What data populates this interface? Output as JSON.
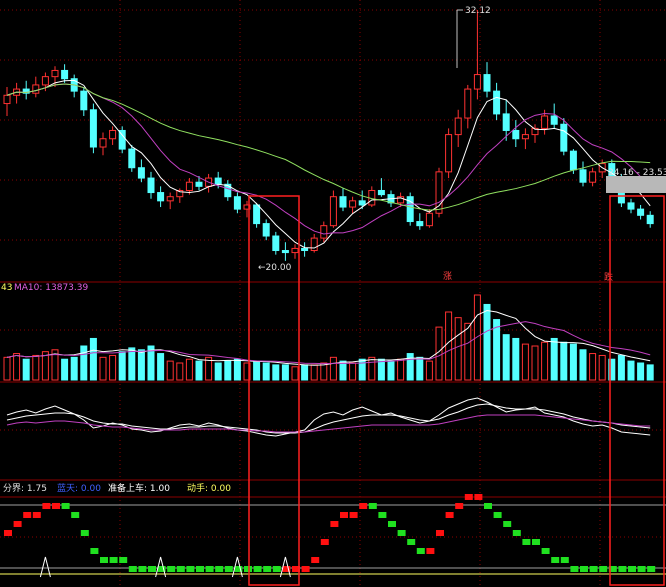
{
  "price_panel": {
    "high_label": "32.12",
    "low_label": "←20.00",
    "range_label": "24.16 - 23.53"
  },
  "volume_panel": {
    "ma5_value_partial": "43",
    "ma10_label": "MA10: 13873.39",
    "marker_left": "涨",
    "marker_right": "跌"
  },
  "indicator_panel": {
    "label_fenjie": "分界: 1.75",
    "label_lanse": "蓝天: 0.00",
    "label_zhunbei": "准备上车: 1.00",
    "label_dongshou": "动手: 0.00"
  },
  "colors": {
    "up": "#ff3232",
    "down": "#54ffff",
    "ma_white": "#ffffff",
    "ma_magenta": "#c040c0",
    "ma_green": "#90e060",
    "grid": "#8b0000",
    "highlight_box": "#ff2020",
    "ind_red": "#ff1010",
    "ind_green": "#20e020"
  },
  "chart_data": {
    "type": "candlestick",
    "candles": [
      {
        "o": 27.6,
        "h": 28.4,
        "l": 27.0,
        "c": 28.0
      },
      {
        "o": 28.0,
        "h": 28.6,
        "l": 27.6,
        "c": 28.3
      },
      {
        "o": 28.3,
        "h": 28.7,
        "l": 27.8,
        "c": 28.1
      },
      {
        "o": 28.1,
        "h": 28.9,
        "l": 27.9,
        "c": 28.5
      },
      {
        "o": 28.5,
        "h": 29.1,
        "l": 28.2,
        "c": 28.9
      },
      {
        "o": 28.9,
        "h": 29.4,
        "l": 28.4,
        "c": 29.2
      },
      {
        "o": 29.2,
        "h": 29.5,
        "l": 28.6,
        "c": 28.8
      },
      {
        "o": 28.8,
        "h": 29.0,
        "l": 27.9,
        "c": 28.2
      },
      {
        "o": 28.2,
        "h": 28.4,
        "l": 27.0,
        "c": 27.3
      },
      {
        "o": 27.3,
        "h": 27.6,
        "l": 25.2,
        "c": 25.5
      },
      {
        "o": 25.5,
        "h": 26.2,
        "l": 25.1,
        "c": 25.9
      },
      {
        "o": 25.9,
        "h": 26.5,
        "l": 25.6,
        "c": 26.3
      },
      {
        "o": 26.3,
        "h": 26.5,
        "l": 25.2,
        "c": 25.4
      },
      {
        "o": 25.4,
        "h": 25.6,
        "l": 24.3,
        "c": 24.5
      },
      {
        "o": 24.5,
        "h": 24.9,
        "l": 23.8,
        "c": 24.0
      },
      {
        "o": 24.0,
        "h": 24.3,
        "l": 23.0,
        "c": 23.3
      },
      {
        "o": 23.3,
        "h": 23.6,
        "l": 22.6,
        "c": 22.9
      },
      {
        "o": 22.9,
        "h": 23.3,
        "l": 22.5,
        "c": 23.1
      },
      {
        "o": 23.1,
        "h": 23.5,
        "l": 22.8,
        "c": 23.4
      },
      {
        "o": 23.4,
        "h": 24.0,
        "l": 23.2,
        "c": 23.8
      },
      {
        "o": 23.8,
        "h": 24.1,
        "l": 23.4,
        "c": 23.6
      },
      {
        "o": 23.6,
        "h": 24.2,
        "l": 23.3,
        "c": 24.0
      },
      {
        "o": 24.0,
        "h": 24.3,
        "l": 23.5,
        "c": 23.7
      },
      {
        "o": 23.7,
        "h": 23.9,
        "l": 22.9,
        "c": 23.1
      },
      {
        "o": 23.1,
        "h": 23.3,
        "l": 22.3,
        "c": 22.5
      },
      {
        "o": 22.5,
        "h": 22.9,
        "l": 22.1,
        "c": 22.7
      },
      {
        "o": 22.7,
        "h": 22.8,
        "l": 21.6,
        "c": 21.8
      },
      {
        "o": 21.8,
        "h": 22.0,
        "l": 21.0,
        "c": 21.2
      },
      {
        "o": 21.2,
        "h": 21.4,
        "l": 20.3,
        "c": 20.5
      },
      {
        "o": 20.5,
        "h": 20.9,
        "l": 20.0,
        "c": 20.4
      },
      {
        "o": 20.4,
        "h": 20.8,
        "l": 20.1,
        "c": 20.6
      },
      {
        "o": 20.6,
        "h": 20.9,
        "l": 20.2,
        "c": 20.5
      },
      {
        "o": 20.5,
        "h": 21.3,
        "l": 20.4,
        "c": 21.1
      },
      {
        "o": 21.1,
        "h": 21.9,
        "l": 20.9,
        "c": 21.7
      },
      {
        "o": 21.7,
        "h": 23.4,
        "l": 21.6,
        "c": 23.1
      },
      {
        "o": 23.1,
        "h": 23.5,
        "l": 22.4,
        "c": 22.6
      },
      {
        "o": 22.6,
        "h": 23.1,
        "l": 22.3,
        "c": 22.9
      },
      {
        "o": 22.9,
        "h": 23.4,
        "l": 22.5,
        "c": 22.7
      },
      {
        "o": 22.7,
        "h": 23.6,
        "l": 22.6,
        "c": 23.4
      },
      {
        "o": 23.4,
        "h": 24.0,
        "l": 23.1,
        "c": 23.2
      },
      {
        "o": 23.2,
        "h": 23.4,
        "l": 22.6,
        "c": 22.8
      },
      {
        "o": 22.8,
        "h": 23.3,
        "l": 22.6,
        "c": 23.1
      },
      {
        "o": 23.1,
        "h": 23.3,
        "l": 21.7,
        "c": 21.9
      },
      {
        "o": 21.9,
        "h": 22.3,
        "l": 21.5,
        "c": 21.7
      },
      {
        "o": 21.7,
        "h": 22.5,
        "l": 21.6,
        "c": 22.3
      },
      {
        "o": 22.3,
        "h": 24.5,
        "l": 22.1,
        "c": 24.3
      },
      {
        "o": 24.3,
        "h": 26.4,
        "l": 24.0,
        "c": 26.1
      },
      {
        "o": 26.1,
        "h": 27.3,
        "l": 25.5,
        "c": 26.9
      },
      {
        "o": 26.9,
        "h": 28.5,
        "l": 26.4,
        "c": 28.3
      },
      {
        "o": 28.3,
        "h": 32.12,
        "l": 27.8,
        "c": 29.0
      },
      {
        "o": 29.0,
        "h": 29.6,
        "l": 27.9,
        "c": 28.2
      },
      {
        "o": 28.2,
        "h": 28.6,
        "l": 26.8,
        "c": 27.1
      },
      {
        "o": 27.1,
        "h": 27.8,
        "l": 25.8,
        "c": 26.3
      },
      {
        "o": 26.3,
        "h": 26.8,
        "l": 25.5,
        "c": 25.9
      },
      {
        "o": 25.9,
        "h": 26.4,
        "l": 25.4,
        "c": 26.1
      },
      {
        "o": 26.1,
        "h": 26.6,
        "l": 25.7,
        "c": 26.4
      },
      {
        "o": 26.4,
        "h": 27.3,
        "l": 26.1,
        "c": 27.0
      },
      {
        "o": 27.0,
        "h": 27.6,
        "l": 26.4,
        "c": 26.6
      },
      {
        "o": 26.6,
        "h": 26.9,
        "l": 25.1,
        "c": 25.3
      },
      {
        "o": 25.3,
        "h": 25.4,
        "l": 24.2,
        "c": 24.4
      },
      {
        "o": 24.4,
        "h": 24.8,
        "l": 23.6,
        "c": 23.8
      },
      {
        "o": 23.8,
        "h": 24.5,
        "l": 23.6,
        "c": 24.3
      },
      {
        "o": 24.3,
        "h": 24.9,
        "l": 24.0,
        "c": 24.7
      },
      {
        "o": 24.7,
        "h": 24.9,
        "l": 23.8,
        "c": 24.0
      },
      {
        "o": 24.0,
        "h": 24.2,
        "l": 22.6,
        "c": 22.8
      },
      {
        "o": 22.8,
        "h": 23.0,
        "l": 22.3,
        "c": 22.5
      },
      {
        "o": 22.5,
        "h": 22.7,
        "l": 22.0,
        "c": 22.2
      },
      {
        "o": 22.2,
        "h": 22.4,
        "l": 21.6,
        "c": 21.8
      }
    ],
    "volume": [
      12,
      14,
      11,
      13,
      15,
      16,
      11,
      12,
      18,
      22,
      12,
      13,
      15,
      17,
      16,
      18,
      14,
      10,
      9,
      11,
      10,
      12,
      9,
      10,
      11,
      9,
      10,
      9,
      8,
      8,
      7,
      8,
      8,
      9,
      12,
      10,
      9,
      11,
      12,
      11,
      10,
      11,
      14,
      12,
      10,
      28,
      36,
      33,
      30,
      45,
      40,
      32,
      24,
      22,
      19,
      18,
      20,
      22,
      20,
      19,
      16,
      14,
      13,
      11,
      13,
      10,
      9,
      8
    ],
    "ind_line_a": [
      55,
      58,
      60,
      57,
      61,
      64,
      60,
      56,
      50,
      42,
      44,
      47,
      45,
      41,
      40,
      38,
      39,
      42,
      45,
      46,
      44,
      47,
      45,
      42,
      40,
      39,
      37,
      35,
      34,
      36,
      38,
      40,
      50,
      56,
      58,
      55,
      60,
      63,
      59,
      55,
      57,
      53,
      50,
      47,
      49,
      55,
      62,
      66,
      70,
      72,
      68,
      63,
      58,
      60,
      61,
      63,
      57,
      55,
      53,
      49,
      46,
      44,
      45,
      42,
      38,
      37,
      36,
      35
    ],
    "ind_line_b": [
      50,
      52,
      54,
      55,
      56,
      57,
      57,
      56,
      53,
      49,
      47,
      46,
      46,
      44,
      43,
      42,
      41,
      41,
      42,
      43,
      43,
      44,
      44,
      43,
      42,
      41,
      40,
      38,
      37,
      37,
      37,
      38,
      41,
      45,
      48,
      50,
      52,
      54,
      55,
      55,
      55,
      54,
      52,
      50,
      49,
      51,
      55,
      58,
      62,
      65,
      66,
      64,
      62,
      61,
      61,
      61,
      60,
      58,
      56,
      53,
      51,
      49,
      48,
      47,
      45,
      44,
      43,
      42
    ],
    "ind_line_c": [
      45,
      47,
      48,
      47,
      48,
      49,
      49,
      48,
      47,
      45,
      44,
      43,
      43,
      42,
      41,
      40,
      40,
      40,
      40,
      41,
      41,
      41,
      41,
      41,
      40,
      40,
      39,
      39,
      38,
      38,
      38,
      38,
      39,
      40,
      41,
      42,
      43,
      44,
      45,
      45,
      45,
      45,
      45,
      45,
      45,
      46,
      48,
      50,
      52,
      54,
      55,
      55,
      55,
      55,
      55,
      55,
      54,
      53,
      52,
      51,
      50,
      49,
      48,
      47,
      46,
      45,
      44,
      44
    ],
    "ind_steps": [
      4,
      5,
      6,
      6,
      7,
      7,
      7,
      6,
      4,
      2,
      1,
      1,
      1,
      0,
      0,
      0,
      0,
      0,
      0,
      0,
      0,
      0,
      0,
      0,
      0,
      0,
      0,
      0,
      0,
      0,
      0,
      0,
      1,
      3,
      5,
      6,
      6,
      7,
      7,
      6,
      5,
      4,
      3,
      2,
      2,
      4,
      6,
      7,
      8,
      8,
      7,
      6,
      5,
      4,
      3,
      3,
      2,
      1,
      1,
      0,
      0,
      0,
      0,
      0,
      0,
      0,
      0,
      0
    ],
    "ind_colors": [
      "r",
      "r",
      "r",
      "r",
      "r",
      "r",
      "g",
      "g",
      "g",
      "g",
      "g",
      "g",
      "g",
      "g",
      "g",
      "g",
      "g",
      "g",
      "g",
      "g",
      "g",
      "g",
      "g",
      "g",
      "g",
      "g",
      "g",
      "g",
      "g",
      "r",
      "r",
      "r",
      "r",
      "r",
      "r",
      "r",
      "r",
      "r",
      "g",
      "g",
      "g",
      "g",
      "g",
      "g",
      "r",
      "r",
      "r",
      "r",
      "r",
      "r",
      "g",
      "g",
      "g",
      "g",
      "g",
      "g",
      "g",
      "g",
      "g",
      "g",
      "g",
      "g",
      "g",
      "g",
      "g",
      "g",
      "g",
      "g"
    ]
  }
}
